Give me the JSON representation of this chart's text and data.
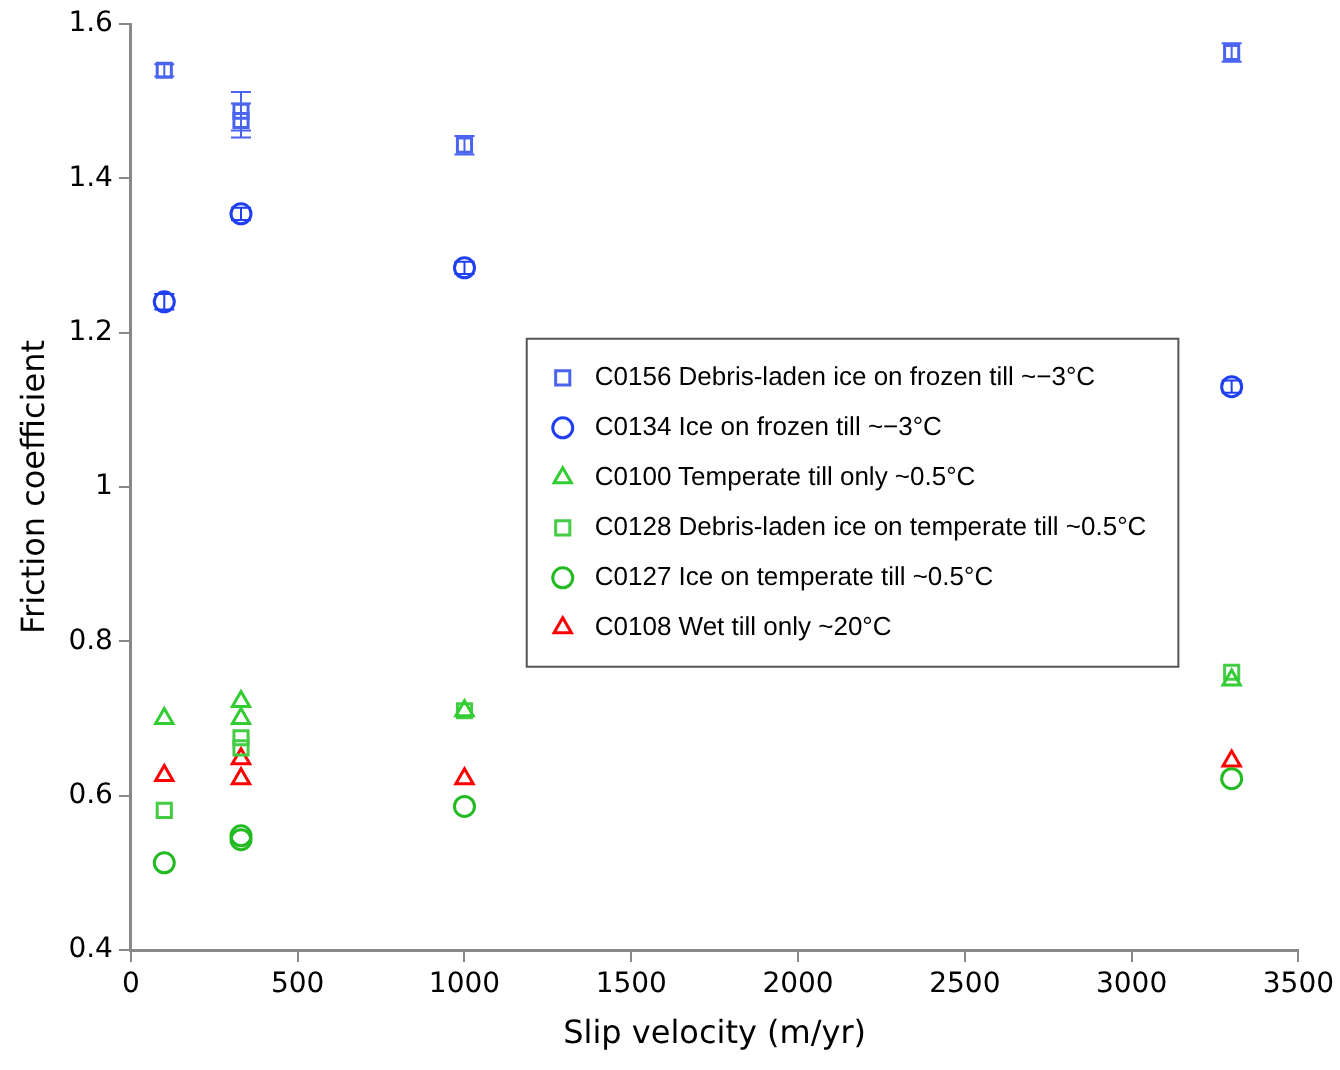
{
  "chart_data": {
    "type": "scatter",
    "xlabel": "Slip velocity (m/yr)",
    "ylabel": "Friction coefficient",
    "xlim": [
      0,
      3500
    ],
    "xticks": [
      0,
      500,
      1000,
      1500,
      2000,
      2500,
      3000,
      3500
    ],
    "ylim": [
      0.4,
      1.6
    ],
    "yticks": [
      0.4,
      0.6,
      0.8,
      1,
      1.2,
      1.4,
      1.6
    ],
    "grid": false,
    "legend": "right",
    "series": [
      {
        "name": "C0156 Debris-laden ice on frozen till ~−3°C",
        "color": "#4a64f0",
        "marker": "square",
        "x": [
          100,
          330,
          330,
          1000,
          3300
        ],
        "values": [
          1.54,
          1.475,
          1.487,
          1.443,
          1.563
        ],
        "errors": [
          0.008,
          0.022,
          0.025,
          0.012,
          0.012
        ]
      },
      {
        "name": "C0134 Ice on frozen till ~−3°C",
        "color": "#1f3ff0",
        "marker": "circle",
        "x": [
          100,
          330,
          1000,
          3300
        ],
        "values": [
          1.24,
          1.354,
          1.284,
          1.13
        ],
        "errors": [
          0.01,
          0.008,
          0.008,
          0.008
        ]
      },
      {
        "name": "C0100 Temperate till only ~0.5°C",
        "color": "#33cc33",
        "marker": "triangle",
        "x": [
          100,
          330,
          330,
          1000,
          3300
        ],
        "values": [
          0.7,
          0.722,
          0.7,
          0.71,
          0.75
        ]
      },
      {
        "name": "C0128 Debris-laden ice on temperate till ~0.5°C",
        "color": "#44cc44",
        "marker": "square",
        "x": [
          100,
          330,
          330,
          1000,
          3300
        ],
        "values": [
          0.581,
          0.675,
          0.662,
          0.71,
          0.76
        ]
      },
      {
        "name": "C0127 Ice on temperate till ~0.5°C",
        "color": "#22bb22",
        "marker": "circle",
        "x": [
          100,
          330,
          330,
          1000,
          3300
        ],
        "values": [
          0.513,
          0.548,
          0.543,
          0.586,
          0.622
        ]
      },
      {
        "name": "C0108 Wet till only ~20°C",
        "color": "#ff0000",
        "marker": "triangle",
        "x": [
          100,
          330,
          330,
          1000,
          3300
        ],
        "values": [
          0.626,
          0.648,
          0.622,
          0.622,
          0.645
        ]
      }
    ]
  }
}
